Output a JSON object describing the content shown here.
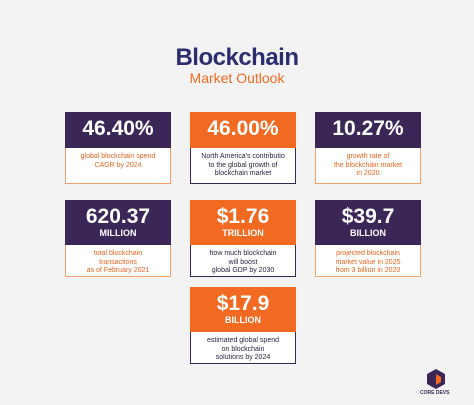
{
  "header": {
    "title": "Blockchain",
    "subtitle": "Market Outlook"
  },
  "cards": [
    {
      "stat": "46.40%",
      "description": [
        "global blockchain spend",
        "CAGR by 2024"
      ]
    },
    {
      "stat": "46.00%",
      "description": [
        "North America's contributio",
        "to the global growth of",
        "blockchain market"
      ]
    },
    {
      "stat": "10.27%",
      "description": [
        "growth rate of",
        "the blockchain market",
        "in 2020"
      ]
    },
    {
      "stat": "620.37",
      "unit": "MILLION",
      "description": [
        "total blockchain",
        "transactions",
        "as of February 2021"
      ]
    },
    {
      "stat": "$1.76",
      "unit": "TRILLION",
      "description": [
        "how much blockchain",
        "will boost",
        "global GDP by 2030"
      ]
    },
    {
      "stat": "$39.7",
      "unit": "BILLION",
      "description": [
        "projected blockchain",
        "market value in 2025",
        "from 3 billion in 2020"
      ]
    },
    {
      "stat": "$17.9",
      "unit": "BILLION",
      "description": [
        "estimated global spend",
        "on blockchain",
        "solutions by 2024"
      ]
    }
  ],
  "logo": {
    "text": "CORE DEVS"
  }
}
